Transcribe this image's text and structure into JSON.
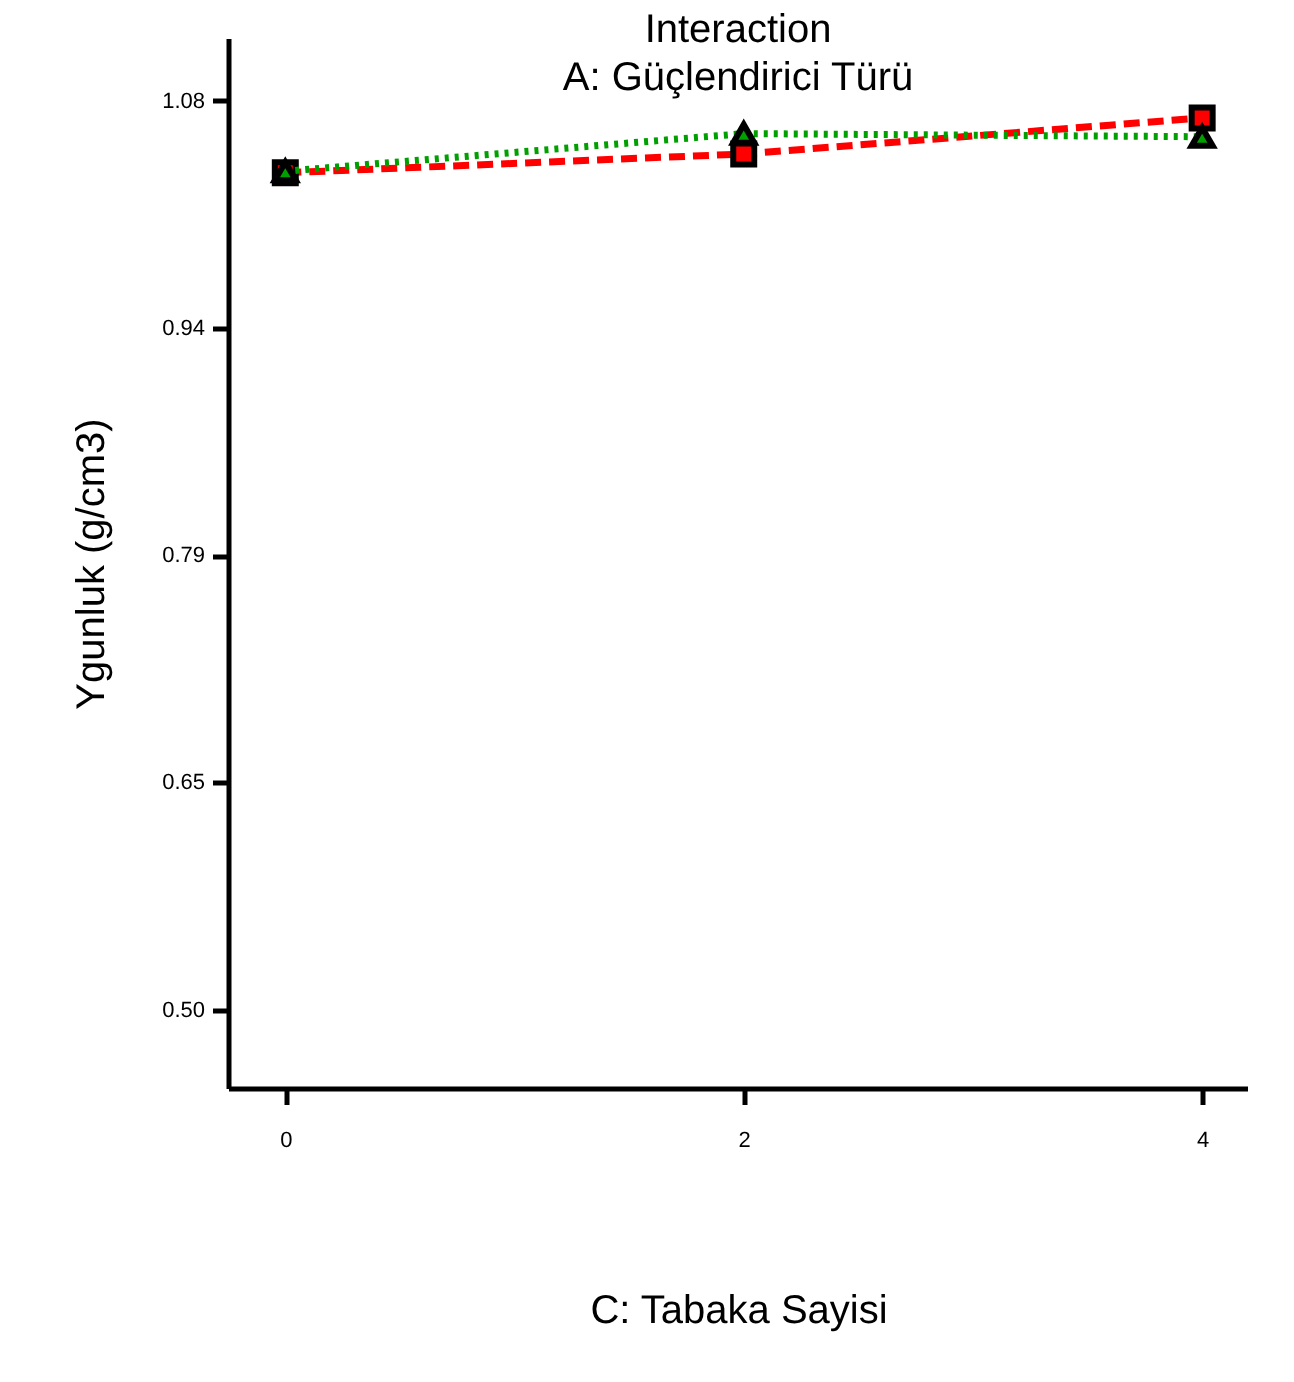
{
  "chart_data": {
    "type": "line",
    "title": "Interaction",
    "subtitle": "A: Güçlendirici Türü",
    "xlabel": "C: Tabaka Sayisi",
    "ylabel": "Ygunluk (g/cm3)",
    "x": [
      0,
      2,
      4
    ],
    "series": [
      {
        "color": "#ff0000",
        "values": [
          1.034,
          1.046,
          1.069
        ],
        "marker": "square",
        "line_style": "dashed"
      },
      {
        "color": "#00a000",
        "values": [
          1.035,
          1.059,
          1.057
        ],
        "marker": "triangle",
        "line_style": "dotted"
      }
    ],
    "xlim": [
      -0.25,
      4.2
    ],
    "xticks": [
      0,
      2,
      4
    ],
    "ylim": [
      0.45,
      1.12
    ],
    "yticks": [
      {
        "value": 0.5,
        "label": "0.50"
      },
      {
        "value": 0.645,
        "label": "0.65"
      },
      {
        "value": 0.79,
        "label": "0.79"
      },
      {
        "value": 0.935,
        "label": "0.94"
      },
      {
        "value": 1.08,
        "label": "1.08"
      }
    ],
    "grid": false
  }
}
